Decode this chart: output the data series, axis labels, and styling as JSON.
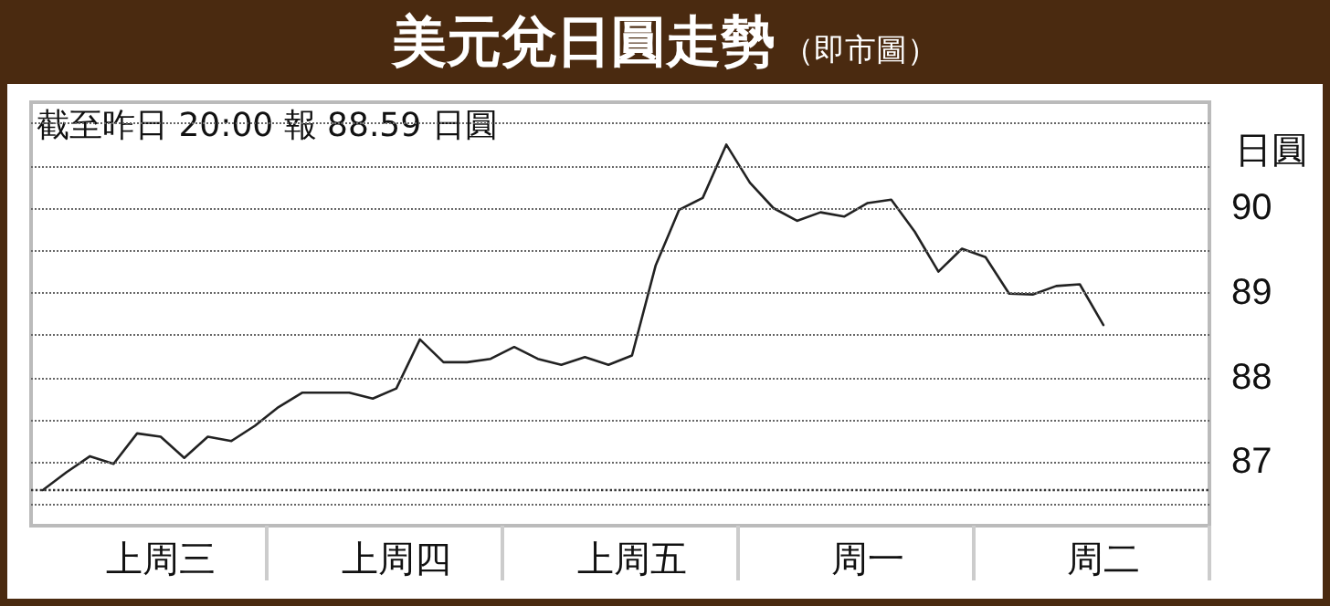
{
  "chart_data": {
    "type": "line",
    "title": "美元兌日圓走勢",
    "subtitle": "（即市圖）",
    "ylabel": "日圓",
    "annotations": [
      "截至昨日 20:00 報 88.59 日圓"
    ],
    "categories": [
      null,
      null,
      null,
      null,
      null,
      "上周三",
      null,
      null,
      null,
      null,
      null,
      null,
      null,
      null,
      null,
      "上周四",
      null,
      null,
      null,
      null,
      null,
      null,
      null,
      null,
      null,
      "上周五",
      null,
      null,
      null,
      null,
      null,
      null,
      null,
      null,
      null,
      "周一",
      null,
      null,
      null,
      null,
      null,
      null,
      null,
      null,
      null,
      "周二",
      null,
      null,
      null,
      null
    ],
    "series": [
      {
        "color": "#222222",
        "values": [
          86.67,
          86.88,
          87.07,
          86.98,
          87.34,
          87.3,
          87.05,
          87.3,
          87.25,
          87.43,
          87.65,
          87.82,
          87.82,
          87.82,
          87.75,
          87.87,
          88.45,
          88.18,
          88.18,
          88.22,
          88.36,
          88.22,
          88.15,
          88.24,
          88.15,
          88.26,
          89.32,
          89.98,
          90.12,
          90.75,
          90.3,
          90.0,
          89.85,
          89.95,
          89.9,
          90.06,
          90.1,
          89.72,
          89.25,
          89.52,
          89.42,
          88.99,
          88.98,
          89.08,
          89.1,
          88.62,
          null,
          null,
          null,
          null
        ]
      }
    ],
    "ylim": [
      86.25,
      91.25
    ],
    "yticks": [
      {
        "value": 86.5,
        "label": null
      },
      87,
      {
        "value": 87.5,
        "label": null
      },
      88,
      {
        "value": 88.5,
        "label": null
      },
      89,
      {
        "value": 89.5,
        "label": null
      },
      90,
      {
        "value": 90.5,
        "label": null
      },
      {
        "value": 91,
        "label": null
      }
    ],
    "ref_lines": [
      {
        "axis": "y",
        "value": 86.67,
        "label": null,
        "color": "#333333",
        "line_style": "dotted"
      }
    ],
    "grid": "y",
    "marker": "none",
    "line_style": "solid"
  }
}
